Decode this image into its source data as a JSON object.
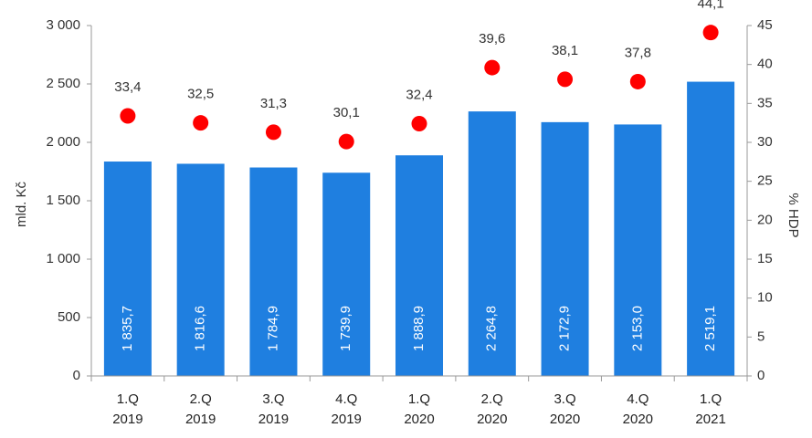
{
  "chart_data": {
    "type": "bar",
    "categories": [
      [
        "1.Q",
        "2019"
      ],
      [
        "2.Q",
        "2019"
      ],
      [
        "3.Q",
        "2019"
      ],
      [
        "4.Q",
        "2019"
      ],
      [
        "1.Q",
        "2020"
      ],
      [
        "2.Q",
        "2020"
      ],
      [
        "3.Q",
        "2020"
      ],
      [
        "4.Q",
        "2020"
      ],
      [
        "1.Q",
        "2021"
      ]
    ],
    "series": [
      {
        "kind": "bar",
        "axis": "left",
        "color": "#1f7fe0",
        "values": [
          1835.7,
          1816.6,
          1784.9,
          1739.9,
          1888.9,
          2264.8,
          2172.9,
          2153.0,
          2519.1
        ],
        "labels": [
          "1 835,7",
          "1 816,6",
          "1 784,9",
          "1 739,9",
          "1 888,9",
          "2 264,8",
          "2 172,9",
          "2 153,0",
          "2 519,1"
        ]
      },
      {
        "kind": "scatter",
        "axis": "right",
        "color": "#ff0000",
        "values": [
          33.4,
          32.5,
          31.3,
          30.1,
          32.4,
          39.6,
          38.1,
          37.8,
          44.1
        ],
        "labels": [
          "33,4",
          "32,5",
          "31,3",
          "30,1",
          "32,4",
          "39,6",
          "38,1",
          "37,8",
          "44,1"
        ]
      }
    ],
    "ylabel": "mld. Kč",
    "ylabel_right": "% HDP",
    "ylim": [
      0,
      3000
    ],
    "ylim_right": [
      0,
      45
    ],
    "yticks": [
      0,
      500,
      1000,
      1500,
      2000,
      2500,
      3000
    ],
    "yticks_labels": [
      "0",
      "500",
      "1 000",
      "1 500",
      "2 000",
      "2 500",
      "3 000"
    ],
    "yticks_right": [
      0,
      5,
      10,
      15,
      20,
      25,
      30,
      35,
      40,
      45
    ],
    "yticks_right_labels": [
      "0",
      "5",
      "10",
      "15",
      "20",
      "25",
      "30",
      "35",
      "40",
      "45"
    ],
    "grid": false,
    "legend": "none"
  }
}
